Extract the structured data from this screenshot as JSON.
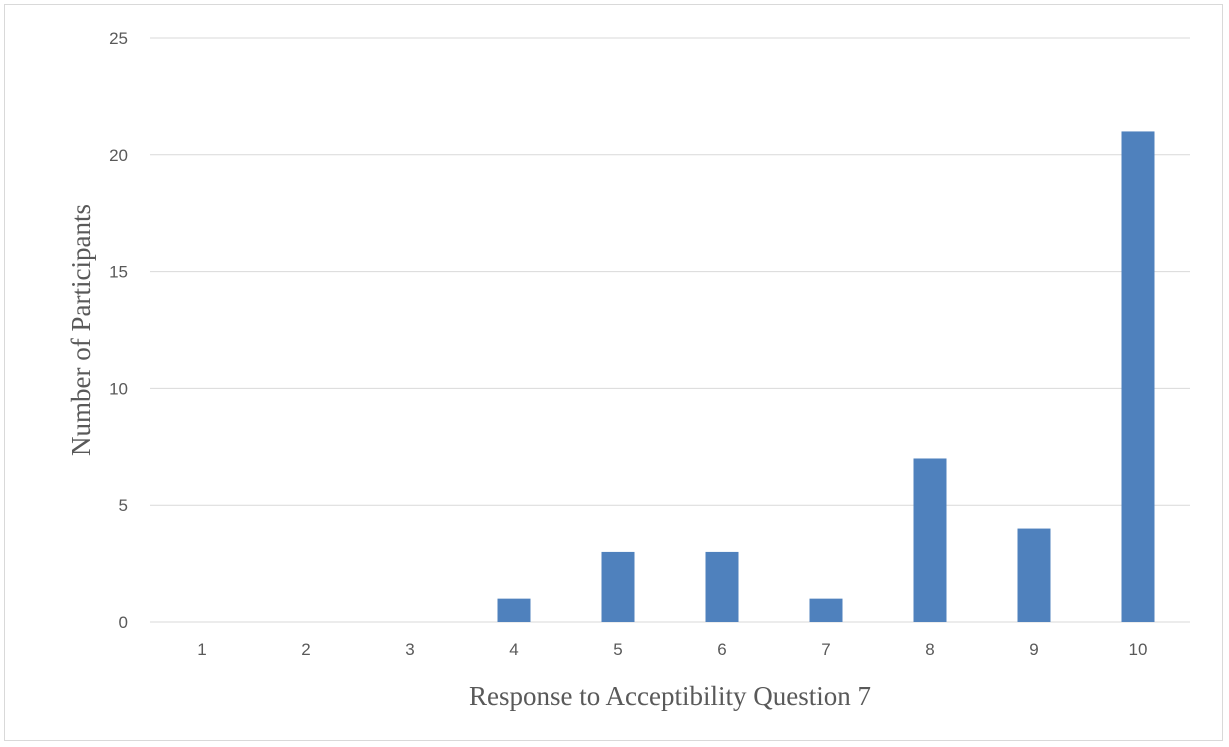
{
  "chart_data": {
    "type": "bar",
    "categories": [
      "1",
      "2",
      "3",
      "4",
      "5",
      "6",
      "7",
      "8",
      "9",
      "10"
    ],
    "values": [
      0,
      0,
      0,
      1,
      3,
      3,
      1,
      7,
      4,
      21
    ],
    "title": "",
    "xlabel": "Response to Acceptibility Question 7",
    "ylabel": "Number of Participants",
    "ylim": [
      0,
      25
    ],
    "yticks": [
      0,
      5,
      10,
      15,
      20,
      25
    ],
    "grid": true,
    "legend": "none",
    "bar_color": "#4f81bd",
    "grid_color": "#d9d9d9",
    "text_color": "#595959"
  }
}
